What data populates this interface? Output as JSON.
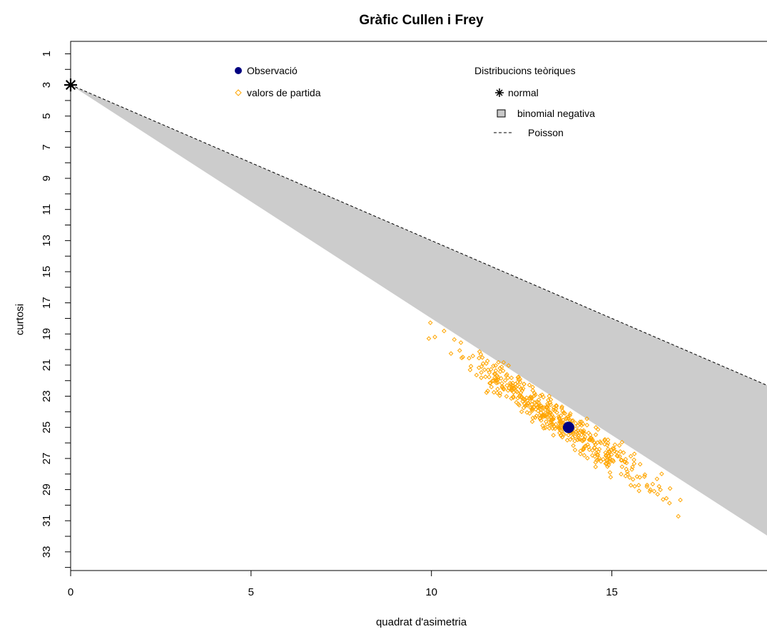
{
  "chart_data": {
    "type": "scatter",
    "title": "Gràfic Cullen i Frey",
    "xlabel": "quadrat d'asimetria",
    "ylabel": "curtosi",
    "xlim": [
      0,
      19.3
    ],
    "ylim": [
      34.2,
      0.2
    ],
    "y_inverted": true,
    "x_ticks": [
      0,
      5,
      10,
      15
    ],
    "y_ticks": [
      1,
      3,
      5,
      7,
      9,
      11,
      13,
      15,
      17,
      19,
      21,
      23,
      25,
      27,
      29,
      31,
      33
    ],
    "grid": false,
    "legend_left": {
      "title": "",
      "entries": [
        {
          "label": "Observació",
          "marker": "filled-circle",
          "color": "#000080"
        },
        {
          "label": "valors de partida",
          "marker": "open-diamond",
          "color": "#FFA500"
        }
      ]
    },
    "legend_right": {
      "title": "Distribucions teòriques",
      "entries": [
        {
          "label": "normal",
          "marker": "asterisk",
          "color": "#000000"
        },
        {
          "label": "binomial negativa",
          "marker": "grey-square",
          "color": "#C8C8C8"
        },
        {
          "label": "Poisson",
          "marker": "dashed-line",
          "color": "#000000"
        }
      ]
    },
    "theoretical": {
      "normal": {
        "x": 0,
        "y": 3
      },
      "poisson_line": {
        "from": [
          0,
          3
        ],
        "to": [
          19.3,
          22.3
        ],
        "slope": 1
      },
      "negative_binomial_region": [
        [
          0,
          3
        ],
        [
          19.3,
          22.3
        ],
        [
          19.3,
          31.95
        ]
      ],
      "region_color": "#CCCCCC"
    },
    "observation": {
      "x": 13.8,
      "y": 25.0,
      "color": "#000080"
    },
    "bootstrap": {
      "color": "#FFA500",
      "n": 480,
      "x_range": [
        9.3,
        18.7
      ],
      "y_range": [
        16.9,
        32.8
      ],
      "trend_slope": 1.6,
      "trend_intercept": 2.9
    }
  }
}
